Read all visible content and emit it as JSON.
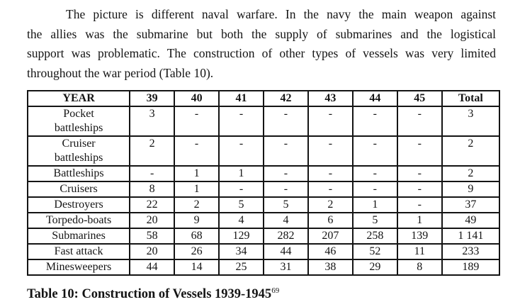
{
  "page": {
    "paragraph": {
      "lines": [
        "The picture is different naval warfare. In the navy the main weapon against",
        "the allies was the submarine but both the supply of submarines and the logistical",
        "support was problematic. The construction of other types of vessels was very limited",
        "throughout the war period (Table 10)."
      ]
    },
    "caption": {
      "text": "Table 10: Construction of Vessels 1939-1945",
      "footnote_ref": "69"
    }
  },
  "table": {
    "header": [
      "YEAR",
      "39",
      "40",
      "41",
      "42",
      "43",
      "44",
      "45",
      "Total"
    ],
    "rows": [
      {
        "label": "Pocket\nbattleships",
        "values": [
          "3",
          "-",
          "-",
          "-",
          "-",
          "-",
          "-",
          "3"
        ]
      },
      {
        "label": "Cruiser\nbattleships",
        "values": [
          "2",
          "-",
          "-",
          "-",
          "-",
          "-",
          "-",
          "2"
        ]
      },
      {
        "label": "Battleships",
        "values": [
          "-",
          "1",
          "1",
          "-",
          "-",
          "-",
          "-",
          "2"
        ]
      },
      {
        "label": "Cruisers",
        "values": [
          "8",
          "1",
          "-",
          "-",
          "-",
          "-",
          "-",
          "9"
        ]
      },
      {
        "label": "Destroyers",
        "values": [
          "22",
          "2",
          "5",
          "5",
          "2",
          "1",
          "-",
          "37"
        ]
      },
      {
        "label": "Torpedo-boats",
        "values": [
          "20",
          "9",
          "4",
          "4",
          "6",
          "5",
          "1",
          "49"
        ]
      },
      {
        "label": "Submarines",
        "values": [
          "58",
          "68",
          "129",
          "282",
          "207",
          "258",
          "139",
          "1 141"
        ]
      },
      {
        "label": "Fast attack",
        "values": [
          "20",
          "26",
          "34",
          "44",
          "46",
          "52",
          "11",
          "233"
        ]
      },
      {
        "label": "Minesweepers",
        "values": [
          "44",
          "14",
          "25",
          "31",
          "38",
          "29",
          "8",
          "189"
        ]
      }
    ]
  },
  "colors": {
    "background": "#ffffff",
    "text": "#141414",
    "table_border": "#141414"
  }
}
